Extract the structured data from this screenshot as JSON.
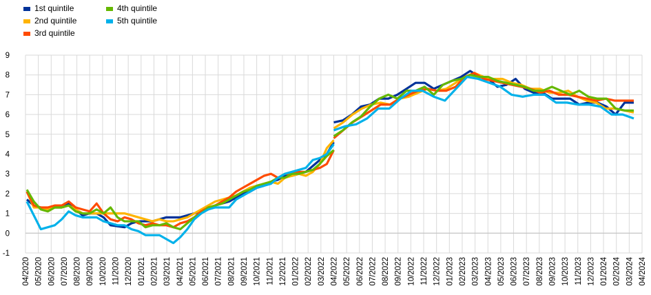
{
  "chart_data": {
    "type": "line",
    "title": "",
    "xlabel": "",
    "ylabel": "",
    "ylim": [
      -1,
      9
    ],
    "yticks": [
      -1,
      0,
      1,
      2,
      3,
      4,
      5,
      6,
      7,
      8,
      9
    ],
    "grid": "vertical and horizontal",
    "legend_position": "top-left",
    "categories": [
      "04/2020",
      "05/2020",
      "06/2020",
      "07/2020",
      "08/2020",
      "09/2020",
      "10/2020",
      "11/2020",
      "12/2020",
      "01/2021",
      "02/2021",
      "03/2021",
      "04/2021",
      "05/2021",
      "06/2021",
      "07/2021",
      "08/2021",
      "09/2021",
      "10/2021",
      "11/2021",
      "12/2021",
      "01/2022",
      "02/2022",
      "03/2022",
      "04/2022",
      "05/2022",
      "06/2022",
      "07/2022",
      "08/2022",
      "09/2022",
      "10/2022",
      "11/2022",
      "12/2022",
      "01/2023",
      "02/2023",
      "03/2023",
      "04/2023",
      "05/2023",
      "06/2023",
      "07/2023",
      "08/2023",
      "09/2023",
      "10/2023",
      "11/2023",
      "12/2023",
      "01/2024",
      "02/2024",
      "03/2024",
      "04/2024"
    ],
    "x_halfstep": [
      "04/2020",
      "",
      "05/2020",
      "",
      "06/2020",
      "",
      "07/2020",
      "",
      "08/2020",
      "",
      "09/2020",
      "",
      "10/2020",
      "",
      "11/2020",
      "",
      "12/2020",
      "",
      "01/2021",
      "",
      "02/2021",
      "",
      "03/2021",
      "",
      "04/2021",
      "",
      "05/2021",
      "",
      "06/2021",
      "",
      "07/2021",
      "",
      "08/2021",
      "",
      "09/2021",
      "",
      "10/2021",
      "",
      "11/2021",
      "",
      "12/2021",
      "",
      "01/2022",
      "",
      "02/2022",
      "",
      "03/2022",
      "",
      "04/2022",
      "04/2022",
      "",
      "05/2022",
      "",
      "06/2022",
      "",
      "07/2022",
      "",
      "08/2022",
      "",
      "09/2022",
      "",
      "10/2022",
      "",
      "11/2022",
      "",
      "12/2022",
      "",
      "01/2023",
      "",
      "02/2023",
      "",
      "03/2023",
      "",
      "04/2023",
      "",
      "05/2023",
      "",
      "06/2023",
      "",
      "07/2023",
      "",
      "08/2023",
      "",
      "09/2023",
      "",
      "10/2023",
      "",
      "11/2023",
      "",
      "12/2023",
      "",
      "01/2024",
      "",
      "02/2024",
      "",
      "03/2024",
      "",
      "04/2024"
    ],
    "series": [
      {
        "name": "1st quintile",
        "color": "#003299",
        "segments": [
          [
            1.7,
            1.4,
            1.3,
            1.2,
            1.3,
            1.3,
            1.5,
            1.2,
            0.9,
            1.0,
            1.0,
            0.8,
            0.4,
            0.35,
            0.3,
            0.5,
            0.6,
            0.6,
            0.6,
            0.7,
            0.8,
            0.8,
            0.8,
            0.9,
            1.0,
            1.1,
            1.2,
            1.4,
            1.5,
            1.6,
            1.8,
            2.0,
            2.1,
            2.3,
            2.4,
            2.6,
            2.7,
            2.9,
            2.9,
            3.0,
            3.1,
            3.4,
            3.7,
            4.0,
            4.6
          ],
          [
            5.6,
            5.7,
            6.0,
            6.4,
            6.5,
            6.8,
            6.8,
            7.0,
            7.3,
            7.6,
            7.6,
            7.3,
            7.5,
            7.7,
            7.9,
            8.2,
            7.9,
            7.8,
            7.4,
            7.5,
            7.8,
            7.3,
            7.1,
            7.1,
            6.8,
            6.8,
            6.8,
            6.5,
            6.6,
            6.6,
            6.4,
            6.0,
            6.6,
            6.6
          ]
        ]
      },
      {
        "name": "2nd quintile",
        "color": "#FFB400",
        "segments": [
          [
            2.1,
            1.3,
            1.3,
            1.2,
            1.3,
            1.3,
            1.4,
            1.2,
            1.0,
            1.0,
            1.0,
            1.0,
            1.0,
            1.0,
            1.0,
            0.9,
            0.8,
            0.7,
            0.6,
            0.7,
            0.6,
            0.6,
            0.7,
            0.8,
            1.0,
            1.2,
            1.4,
            1.6,
            1.7,
            1.8,
            1.9,
            2.1,
            2.3,
            2.4,
            2.5,
            2.6,
            2.5,
            2.8,
            2.9,
            3.0,
            2.9,
            3.1,
            3.5,
            4.3,
            4.7
          ],
          [
            5.3,
            5.6,
            6.0,
            6.3,
            6.5,
            6.6,
            6.5,
            6.8,
            6.9,
            7.1,
            7.3,
            7.2,
            7.3,
            7.6,
            7.9,
            8.1,
            7.9,
            7.8,
            7.8,
            7.6,
            7.5,
            7.3,
            7.3,
            7.1,
            7.1,
            7.2,
            6.9,
            6.7,
            6.6,
            6.3,
            6.3,
            6.2,
            6.1
          ]
        ]
      },
      {
        "name": "3rd quintile",
        "color": "#FF4B00",
        "segments": [
          [
            2.1,
            1.4,
            1.3,
            1.3,
            1.4,
            1.4,
            1.6,
            1.3,
            1.2,
            1.1,
            1.5,
            1.0,
            0.7,
            0.6,
            0.8,
            0.7,
            0.5,
            0.4,
            0.5,
            0.4,
            0.4,
            0.3,
            0.5,
            0.6,
            0.8,
            1.1,
            1.3,
            1.4,
            1.6,
            1.8,
            2.1,
            2.3,
            2.5,
            2.7,
            2.9,
            3.0,
            2.8,
            3.0,
            3.0,
            3.1,
            3.1,
            3.2,
            3.3,
            3.5,
            4.2
          ],
          [
            4.8,
            5.2,
            5.6,
            5.9,
            6.2,
            6.5,
            6.5,
            6.8,
            7.0,
            7.2,
            7.3,
            7.2,
            7.2,
            7.4,
            7.9,
            8.1,
            7.8,
            7.7,
            7.6,
            7.5,
            7.4,
            7.3,
            7.1,
            7.2,
            7.0,
            7.0,
            6.9,
            6.8,
            6.7,
            6.8,
            6.7,
            6.7,
            6.7
          ]
        ]
      },
      {
        "name": "4th quintile",
        "color": "#65B800",
        "segments": [
          [
            2.2,
            1.6,
            1.2,
            1.1,
            1.3,
            1.3,
            1.4,
            1.1,
            1.0,
            1.0,
            1.2,
            1.0,
            1.3,
            0.8,
            0.6,
            0.6,
            0.6,
            0.3,
            0.4,
            0.4,
            0.5,
            0.3,
            0.2,
            0.5,
            0.8,
            1.0,
            1.3,
            1.4,
            1.5,
            1.7,
            1.9,
            2.1,
            2.2,
            2.4,
            2.5,
            2.6,
            2.8,
            2.8,
            3.0,
            3.0,
            3.1,
            3.2,
            3.5,
            3.9,
            4.2
          ],
          [
            4.9,
            5.2,
            5.6,
            5.9,
            6.4,
            6.8,
            7.0,
            6.8,
            7.2,
            7.2,
            7.4,
            7.0,
            7.5,
            7.7,
            7.8,
            8.0,
            7.9,
            7.9,
            7.7,
            7.6,
            7.5,
            7.4,
            7.2,
            7.2,
            7.4,
            7.2,
            7.0,
            7.2,
            6.9,
            6.8,
            6.8,
            6.3,
            6.2,
            6.2
          ]
        ]
      },
      {
        "name": "5th quintile",
        "color": "#00B1EA",
        "segments": [
          [
            1.6,
            0.9,
            0.2,
            0.3,
            0.4,
            0.7,
            1.1,
            0.9,
            0.8,
            0.8,
            0.8,
            0.6,
            0.5,
            0.4,
            0.4,
            0.2,
            0.1,
            -0.1,
            -0.1,
            -0.1,
            -0.3,
            -0.5,
            -0.2,
            0.2,
            0.7,
            1.0,
            1.2,
            1.3,
            1.3,
            1.3,
            1.7,
            1.9,
            2.1,
            2.3,
            2.4,
            2.5,
            2.8,
            3.0,
            3.1,
            3.2,
            3.3,
            3.7,
            3.8,
            4.0,
            4.5
          ],
          [
            5.2,
            5.4,
            5.5,
            5.8,
            6.3,
            6.3,
            6.8,
            7.2,
            7.2,
            6.9,
            6.7,
            7.3,
            7.9,
            7.8,
            7.6,
            7.4,
            7.0,
            6.9,
            7.0,
            7.0,
            6.6,
            6.6,
            6.5,
            6.5,
            6.4,
            6.0,
            6.0,
            5.8
          ]
        ]
      }
    ]
  },
  "legend": {
    "items": [
      {
        "label": "1st quintile",
        "color": "#003299"
      },
      {
        "label": "2nd quintile",
        "color": "#FFB400"
      },
      {
        "label": "3rd quintile",
        "color": "#FF4B00"
      },
      {
        "label": "4th quintile",
        "color": "#65B800"
      },
      {
        "label": "5th quintile",
        "color": "#00B1EA"
      }
    ]
  }
}
